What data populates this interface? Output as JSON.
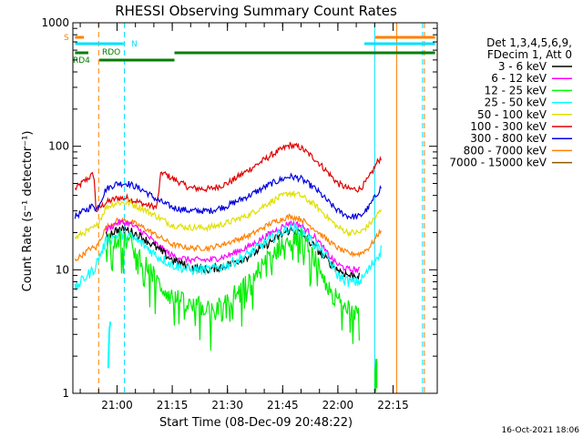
{
  "chart_data": {
    "type": "line",
    "title": "RHESSI Observing Summary Count Rates",
    "xlabel": "Start Time (08-Dec-09 20:48:22)",
    "ylabel": "Count Rate (s⁻¹ detector⁻¹)",
    "yscale": "log",
    "ylim": [
      1,
      1000
    ],
    "xlim_minutes": [
      20.8,
      22.45
    ],
    "x_ticks": [
      "21:00",
      "21:15",
      "21:30",
      "21:45",
      "22:00",
      "22:15"
    ],
    "y_ticks": [
      "1",
      "10",
      "100",
      "1000"
    ],
    "timestamp": "16-Oct-2021 18:06",
    "legend": {
      "header": [
        "Det 1,3,4,5,6,9,",
        "FDecim 1, Att 0"
      ],
      "placement": "right",
      "entries": [
        {
          "label": "3 - 6 keV",
          "color": "#000000"
        },
        {
          "label": "6 - 12 keV",
          "color": "#ff00ff"
        },
        {
          "label": "12 - 25 keV",
          "color": "#00ff00"
        },
        {
          "label": "25 - 50 keV",
          "color": "#00ffff"
        },
        {
          "label": "50 - 100 keV",
          "color": "#e0e000"
        },
        {
          "label": "100 - 300 keV",
          "color": "#e00000"
        },
        {
          "label": "300 - 800 keV",
          "color": "#0000e0"
        },
        {
          "label": "800 - 7000 keV",
          "color": "#ff8000"
        },
        {
          "label": "7000 - 15000 keV",
          "color": "#8b5a00"
        }
      ]
    },
    "flags": [
      {
        "label": "S",
        "color": "#ff8000"
      },
      {
        "label": "N",
        "color": "#00e0ff"
      },
      {
        "label": "RDO",
        "color": "#008000"
      },
      {
        "label": "RD4",
        "color": "#008000"
      }
    ],
    "time_grid": [
      "20:50",
      "21:05",
      "21:15",
      "21:30",
      "21:45",
      "22:00",
      "22:15",
      "22:20"
    ],
    "series": [
      {
        "name": "100 - 300 keV",
        "color": "#e00000",
        "noise": 0.06,
        "points": [
          [
            20.81,
            45
          ],
          [
            20.85,
            52
          ],
          [
            20.88,
            57
          ],
          [
            20.895,
            60
          ],
          [
            20.905,
            30
          ],
          [
            20.95,
            35
          ],
          [
            21.0,
            38
          ],
          [
            21.05,
            38
          ],
          [
            21.12,
            34
          ],
          [
            21.18,
            32
          ],
          [
            21.2,
            62
          ],
          [
            21.25,
            55
          ],
          [
            21.33,
            46
          ],
          [
            21.42,
            45
          ],
          [
            21.5,
            50
          ],
          [
            21.6,
            65
          ],
          [
            21.7,
            85
          ],
          [
            21.78,
            102
          ],
          [
            21.83,
            98
          ],
          [
            21.9,
            78
          ],
          [
            21.96,
            60
          ],
          [
            22.0,
            50
          ],
          [
            22.05,
            45
          ],
          [
            22.1,
            45
          ],
          [
            22.14,
            55
          ],
          [
            22.18,
            75
          ],
          [
            22.2,
            82
          ]
        ]
      },
      {
        "name": "300 - 800 keV",
        "color": "#0000e0",
        "noise": 0.06,
        "points": [
          [
            20.81,
            27
          ],
          [
            20.85,
            30
          ],
          [
            20.88,
            32
          ],
          [
            20.895,
            34
          ],
          [
            20.905,
            30
          ],
          [
            20.95,
            45
          ],
          [
            21.0,
            50
          ],
          [
            21.05,
            50
          ],
          [
            21.12,
            44
          ],
          [
            21.18,
            37
          ],
          [
            21.25,
            32
          ],
          [
            21.33,
            30
          ],
          [
            21.42,
            30
          ],
          [
            21.5,
            33
          ],
          [
            21.6,
            40
          ],
          [
            21.7,
            50
          ],
          [
            21.78,
            57
          ],
          [
            21.83,
            55
          ],
          [
            21.9,
            45
          ],
          [
            21.96,
            35
          ],
          [
            22.0,
            30
          ],
          [
            22.05,
            27
          ],
          [
            22.1,
            27
          ],
          [
            22.14,
            32
          ],
          [
            22.18,
            42
          ],
          [
            22.2,
            48
          ]
        ]
      },
      {
        "name": "50 - 100 keV",
        "color": "#e0e000",
        "noise": 0.06,
        "points": [
          [
            20.81,
            18
          ],
          [
            20.85,
            20
          ],
          [
            20.88,
            21
          ],
          [
            20.895,
            22
          ],
          [
            20.905,
            22
          ],
          [
            20.95,
            32
          ],
          [
            21.0,
            35
          ],
          [
            21.05,
            35
          ],
          [
            21.12,
            31
          ],
          [
            21.18,
            27
          ],
          [
            21.25,
            23
          ],
          [
            21.33,
            22
          ],
          [
            21.42,
            22
          ],
          [
            21.5,
            24
          ],
          [
            21.6,
            28
          ],
          [
            21.7,
            36
          ],
          [
            21.78,
            42
          ],
          [
            21.83,
            40
          ],
          [
            21.9,
            33
          ],
          [
            21.96,
            26
          ],
          [
            22.0,
            22
          ],
          [
            22.05,
            20
          ],
          [
            22.1,
            20
          ],
          [
            22.14,
            23
          ],
          [
            22.18,
            28
          ],
          [
            22.2,
            31
          ]
        ]
      },
      {
        "name": "800 - 7000 keV",
        "color": "#ff8000",
        "noise": 0.05,
        "points": [
          [
            20.81,
            12
          ],
          [
            20.85,
            13.5
          ],
          [
            20.88,
            15
          ],
          [
            20.895,
            15
          ],
          [
            20.905,
            15
          ],
          [
            20.95,
            22
          ],
          [
            21.0,
            25
          ],
          [
            21.05,
            25
          ],
          [
            21.12,
            22
          ],
          [
            21.18,
            19
          ],
          [
            21.25,
            16
          ],
          [
            21.33,
            15
          ],
          [
            21.42,
            15
          ],
          [
            21.5,
            16.5
          ],
          [
            21.6,
            19
          ],
          [
            21.7,
            24
          ],
          [
            21.78,
            27
          ],
          [
            21.83,
            26
          ],
          [
            21.9,
            21
          ],
          [
            21.96,
            17
          ],
          [
            22.0,
            15
          ],
          [
            22.05,
            13.5
          ],
          [
            22.1,
            13.5
          ],
          [
            22.14,
            15
          ],
          [
            22.18,
            19
          ],
          [
            22.2,
            22
          ]
        ]
      },
      {
        "name": "6 - 12 keV",
        "color": "#ff00ff",
        "noise": 0.06,
        "points": [
          [
            20.95,
            21
          ],
          [
            21.0,
            24
          ],
          [
            21.05,
            24
          ],
          [
            21.12,
            20
          ],
          [
            21.18,
            16
          ],
          [
            21.25,
            13
          ],
          [
            21.33,
            12
          ],
          [
            21.42,
            12
          ],
          [
            21.5,
            13
          ],
          [
            21.6,
            15.5
          ],
          [
            21.7,
            20
          ],
          [
            21.78,
            24
          ],
          [
            21.83,
            23
          ],
          [
            21.9,
            18
          ],
          [
            21.96,
            13
          ],
          [
            22.0,
            11
          ],
          [
            22.05,
            10
          ],
          [
            22.1,
            10
          ]
        ]
      },
      {
        "name": "3 - 6 keV",
        "color": "#000000",
        "noise": 0.08,
        "points": [
          [
            20.95,
            19
          ],
          [
            21.0,
            21
          ],
          [
            21.05,
            21
          ],
          [
            21.12,
            18
          ],
          [
            21.18,
            15
          ],
          [
            21.25,
            12
          ],
          [
            21.33,
            10.5
          ],
          [
            21.42,
            10
          ],
          [
            21.5,
            11
          ],
          [
            21.6,
            13
          ],
          [
            21.7,
            17
          ],
          [
            21.78,
            21
          ],
          [
            21.83,
            20
          ],
          [
            21.9,
            15
          ],
          [
            21.96,
            11.5
          ],
          [
            22.0,
            10
          ],
          [
            22.05,
            9
          ],
          [
            22.1,
            9
          ]
        ]
      },
      {
        "name": "25 - 50 keV",
        "color": "#00ffff",
        "noise": 0.1,
        "points": [
          [
            20.81,
            7
          ],
          [
            20.85,
            8.5
          ],
          [
            20.88,
            9.5
          ],
          [
            20.895,
            10
          ],
          [
            20.95,
            17
          ],
          [
            21.0,
            19
          ],
          [
            21.05,
            19
          ],
          [
            21.12,
            16
          ],
          [
            21.18,
            13
          ],
          [
            21.25,
            11
          ],
          [
            21.33,
            10
          ],
          [
            21.42,
            10
          ],
          [
            21.5,
            11
          ],
          [
            21.6,
            13.5
          ],
          [
            21.7,
            18
          ],
          [
            21.78,
            22
          ],
          [
            21.83,
            21
          ],
          [
            21.9,
            16
          ],
          [
            21.96,
            12
          ],
          [
            22.0,
            9
          ],
          [
            22.05,
            8
          ],
          [
            22.1,
            8
          ],
          [
            22.14,
            10
          ],
          [
            22.18,
            13
          ],
          [
            22.2,
            15
          ]
        ]
      },
      {
        "name": "12 - 25 keV",
        "color": "#00ee00",
        "noise": 0.2,
        "points": [
          [
            20.95,
            17
          ],
          [
            21.0,
            18
          ],
          [
            21.05,
            17
          ],
          [
            21.12,
            12
          ],
          [
            21.18,
            8
          ],
          [
            21.25,
            6
          ],
          [
            21.33,
            5
          ],
          [
            21.42,
            5
          ],
          [
            21.5,
            5.5
          ],
          [
            21.6,
            8
          ],
          [
            21.7,
            13
          ],
          [
            21.78,
            19
          ],
          [
            21.83,
            18
          ],
          [
            21.9,
            12
          ],
          [
            21.96,
            7
          ],
          [
            22.0,
            5.5
          ],
          [
            22.05,
            5
          ],
          [
            22.1,
            5.5
          ]
        ]
      }
    ]
  }
}
